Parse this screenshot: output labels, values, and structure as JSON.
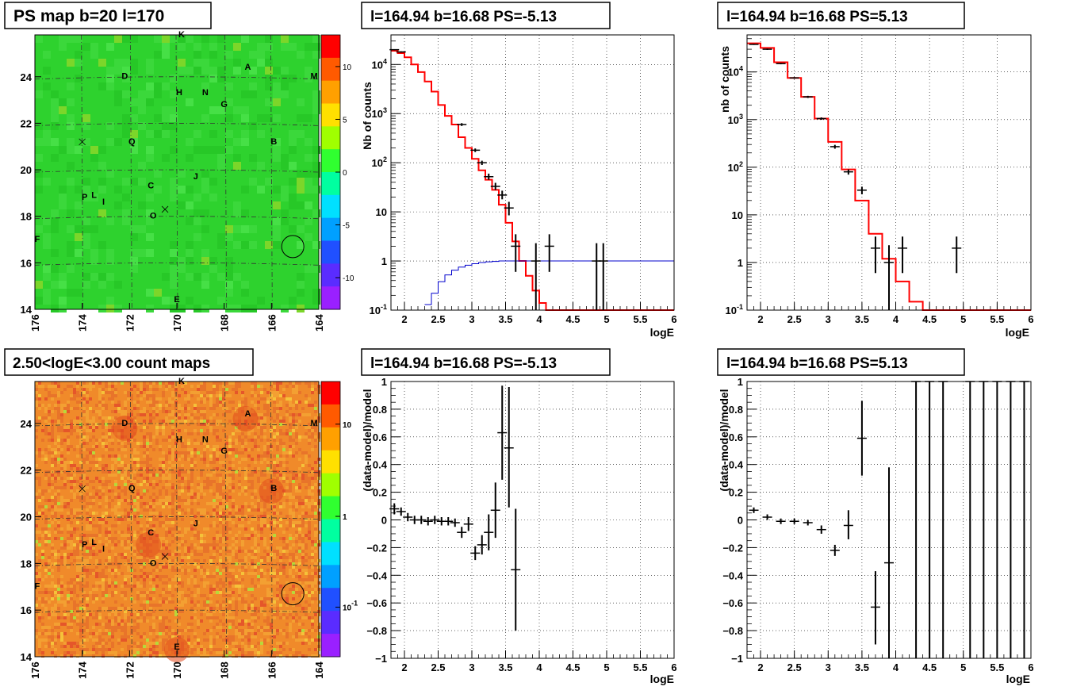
{
  "chart_data": [
    {
      "type": "heatmap",
      "title": "PS map b=20 l=170",
      "xlim": [
        176,
        164
      ],
      "ylim": [
        14,
        25.8
      ],
      "x_ticks": [
        "176",
        "174",
        "172",
        "170",
        "168",
        "166",
        "164"
      ],
      "y_ticks": [
        "14",
        "16",
        "18",
        "20",
        "22",
        "24"
      ],
      "colorbar": {
        "ticks": [
          "-10",
          "-5",
          "0",
          "5",
          "10"
        ],
        "range": [
          -13,
          13
        ]
      },
      "colors": {
        "background": "#2ed22e",
        "circle": "#000000"
      },
      "sources": [
        {
          "label": "K",
          "l": 169.8,
          "b": 25.7
        },
        {
          "label": "A",
          "l": 167.0,
          "b": 24.3
        },
        {
          "label": "M",
          "l": 164.2,
          "b": 23.9
        },
        {
          "label": "D",
          "l": 172.2,
          "b": 23.9
        },
        {
          "label": "H",
          "l": 169.9,
          "b": 23.2
        },
        {
          "label": "N",
          "l": 168.8,
          "b": 23.2
        },
        {
          "label": "G",
          "l": 168.0,
          "b": 22.7
        },
        {
          "label": "B",
          "l": 165.9,
          "b": 21.1
        },
        {
          "label": "Q",
          "l": 171.9,
          "b": 21.1
        },
        {
          "label": "J",
          "l": 169.2,
          "b": 19.6
        },
        {
          "label": "C",
          "l": 171.1,
          "b": 19.2
        },
        {
          "label": "P",
          "l": 173.9,
          "b": 18.7
        },
        {
          "label": "L",
          "l": 173.5,
          "b": 18.8
        },
        {
          "label": "I",
          "l": 173.1,
          "b": 18.5
        },
        {
          "label": "O",
          "l": 171.0,
          "b": 17.9
        },
        {
          "label": "F",
          "l": 175.9,
          "b": 16.9
        },
        {
          "label": "E",
          "l": 170.0,
          "b": 14.3
        }
      ],
      "crosses": [
        {
          "l": 174.0,
          "b": 21.2
        },
        {
          "l": 170.5,
          "b": 18.3
        }
      ],
      "circle": {
        "l": 165.1,
        "b": 16.7
      }
    },
    {
      "type": "line",
      "title": "l=164.94 b=16.68 PS=-5.13",
      "xlabel": "logE",
      "ylabel": "Nb of counts",
      "xlim": [
        1.8,
        6
      ],
      "ylim": [
        0.1,
        40000
      ],
      "yscale": "log",
      "x_ticks": [
        "2",
        "2.5",
        "3",
        "3.5",
        "4",
        "4.5",
        "5",
        "5.5",
        "6"
      ],
      "y_ticks": [
        {
          "label": "10",
          "sup": "-1"
        },
        {
          "label": "1",
          "sup": ""
        },
        {
          "label": "10",
          "sup": ""
        },
        {
          "label": "10",
          "sup": "2"
        },
        {
          "label": "10",
          "sup": "3"
        },
        {
          "label": "10",
          "sup": "4"
        }
      ],
      "grid": true,
      "series": [
        {
          "role": "model",
          "color": "#ff0000",
          "edges": [
            1.8,
            1.9,
            2.0,
            2.1,
            2.2,
            2.3,
            2.4,
            2.5,
            2.6,
            2.7,
            2.8,
            2.9,
            3.0,
            3.1,
            3.2,
            3.3,
            3.4,
            3.5,
            3.6,
            3.7,
            3.8,
            3.9,
            4.0,
            4.1,
            4.2,
            6.0
          ],
          "values": [
            19000,
            17000,
            14000,
            10000,
            7000,
            4500,
            2800,
            1500,
            900,
            600,
            330,
            200,
            120,
            70,
            45,
            28,
            14,
            6,
            2.5,
            1.0,
            0.5,
            0.25,
            0.14,
            0.1,
            0.1
          ]
        },
        {
          "role": "component",
          "color": "#0000cc",
          "edges": [
            2.3,
            2.4,
            2.5,
            2.6,
            2.7,
            2.8,
            2.9,
            3.0,
            3.1,
            3.2,
            3.3,
            3.4,
            3.5,
            6.0
          ],
          "values": [
            0.13,
            0.22,
            0.38,
            0.52,
            0.65,
            0.75,
            0.82,
            0.88,
            0.93,
            0.96,
            0.98,
            1.0,
            1.0
          ]
        },
        {
          "role": "data",
          "color": "#000000",
          "points": [
            {
              "x": 1.85,
              "y": 20000,
              "lo": 19500,
              "hi": 20500
            },
            {
              "x": 1.95,
              "y": 18000,
              "lo": 17500,
              "hi": 18500
            },
            {
              "x": 2.85,
              "y": 600,
              "lo": 560,
              "hi": 640
            },
            {
              "x": 3.05,
              "y": 180,
              "lo": 165,
              "hi": 195
            },
            {
              "x": 3.15,
              "y": 100,
              "lo": 90,
              "hi": 110
            },
            {
              "x": 3.25,
              "y": 52,
              "lo": 45,
              "hi": 60
            },
            {
              "x": 3.35,
              "y": 33,
              "lo": 28,
              "hi": 39
            },
            {
              "x": 3.45,
              "y": 22,
              "lo": 18,
              "hi": 27
            },
            {
              "x": 3.55,
              "y": 12,
              "lo": 8.5,
              "hi": 16
            },
            {
              "x": 3.65,
              "y": 2,
              "lo": 0.6,
              "hi": 3.5
            },
            {
              "x": 3.95,
              "y": 1,
              "lo": 0.1,
              "hi": 2.3
            },
            {
              "x": 4.15,
              "y": 2,
              "lo": 0.6,
              "hi": 3.5
            },
            {
              "x": 4.85,
              "y": 1,
              "lo": 0.1,
              "hi": 2.3
            },
            {
              "x": 4.95,
              "y": 1,
              "lo": 0.1,
              "hi": 2.3
            }
          ]
        }
      ]
    },
    {
      "type": "line",
      "title": "l=164.94 b=16.68 PS=5.13",
      "xlabel": "logE",
      "ylabel": "nb of counts",
      "xlim": [
        1.8,
        6
      ],
      "ylim": [
        0.1,
        60000
      ],
      "yscale": "log",
      "x_ticks": [
        "2",
        "2.5",
        "3",
        "3.5",
        "4",
        "4.5",
        "5",
        "5.5",
        "6"
      ],
      "y_ticks": [
        {
          "label": "10",
          "sup": "-1"
        },
        {
          "label": "1",
          "sup": ""
        },
        {
          "label": "10",
          "sup": ""
        },
        {
          "label": "10",
          "sup": "2"
        },
        {
          "label": "10",
          "sup": "3"
        },
        {
          "label": "10",
          "sup": "4"
        }
      ],
      "grid": true,
      "series": [
        {
          "role": "model",
          "color": "#ff0000",
          "edges": [
            1.8,
            2.0,
            2.2,
            2.4,
            2.6,
            2.8,
            3.0,
            3.2,
            3.4,
            3.6,
            3.8,
            4.0,
            4.2,
            4.4,
            4.6,
            6.0
          ],
          "values": [
            40000,
            32000,
            16000,
            7500,
            3000,
            1050,
            340,
            90,
            20,
            4,
            1.2,
            0.4,
            0.15,
            0.1,
            0.1
          ]
        },
        {
          "role": "data",
          "color": "#000000",
          "points": [
            {
              "x": 1.9,
              "y": 38000,
              "lo": 37000,
              "hi": 39000
            },
            {
              "x": 2.1,
              "y": 30000,
              "lo": 29000,
              "hi": 31000
            },
            {
              "x": 2.3,
              "y": 15000,
              "lo": 14500,
              "hi": 15500
            },
            {
              "x": 2.5,
              "y": 7500,
              "lo": 7200,
              "hi": 7800
            },
            {
              "x": 2.7,
              "y": 3000,
              "lo": 2850,
              "hi": 3150
            },
            {
              "x": 2.9,
              "y": 1050,
              "lo": 990,
              "hi": 1110
            },
            {
              "x": 3.1,
              "y": 270,
              "lo": 245,
              "hi": 295
            },
            {
              "x": 3.3,
              "y": 80,
              "lo": 70,
              "hi": 90
            },
            {
              "x": 3.5,
              "y": 33,
              "lo": 27,
              "hi": 39
            },
            {
              "x": 3.7,
              "y": 2,
              "lo": 0.6,
              "hi": 3.5
            },
            {
              "x": 3.9,
              "y": 1,
              "lo": 0.1,
              "hi": 2.3
            },
            {
              "x": 4.1,
              "y": 2,
              "lo": 0.6,
              "hi": 3.5
            },
            {
              "x": 4.9,
              "y": 2,
              "lo": 0.6,
              "hi": 3.5
            }
          ]
        }
      ]
    },
    {
      "type": "heatmap",
      "title": "2.50<logE<3.00 count maps",
      "xlim": [
        176,
        164
      ],
      "ylim": [
        14,
        25.8
      ],
      "x_ticks": [
        "176",
        "174",
        "172",
        "170",
        "168",
        "166",
        "164"
      ],
      "y_ticks": [
        "14",
        "16",
        "18",
        "20",
        "22",
        "24"
      ],
      "colorbar": {
        "ticks": [
          {
            "label": "10",
            "sup": "-1"
          },
          {
            "label": "1",
            "sup": ""
          },
          {
            "label": "10",
            "sup": ""
          }
        ],
        "scale": "log"
      },
      "colors": {
        "background": "#f08a2a",
        "hot": "#e24a1e",
        "circle": "#000000"
      },
      "hot_spots": [
        {
          "l": 171.2,
          "b": 18.8
        },
        {
          "l": 167.1,
          "b": 24.2
        },
        {
          "l": 172.2,
          "b": 23.8
        },
        {
          "l": 166.0,
          "b": 21.1
        },
        {
          "l": 170.0,
          "b": 14.3
        }
      ],
      "sources": [
        {
          "label": "K",
          "l": 169.8,
          "b": 25.7
        },
        {
          "label": "A",
          "l": 167.0,
          "b": 24.3
        },
        {
          "label": "M",
          "l": 164.2,
          "b": 23.9
        },
        {
          "label": "D",
          "l": 172.2,
          "b": 23.9
        },
        {
          "label": "H",
          "l": 169.9,
          "b": 23.2
        },
        {
          "label": "N",
          "l": 168.8,
          "b": 23.2
        },
        {
          "label": "G",
          "l": 168.0,
          "b": 22.7
        },
        {
          "label": "B",
          "l": 165.9,
          "b": 21.1
        },
        {
          "label": "Q",
          "l": 171.9,
          "b": 21.1
        },
        {
          "label": "J",
          "l": 169.2,
          "b": 19.6
        },
        {
          "label": "C",
          "l": 171.1,
          "b": 19.2
        },
        {
          "label": "P",
          "l": 173.9,
          "b": 18.7
        },
        {
          "label": "L",
          "l": 173.5,
          "b": 18.8
        },
        {
          "label": "I",
          "l": 173.1,
          "b": 18.5
        },
        {
          "label": "O",
          "l": 171.0,
          "b": 17.9
        },
        {
          "label": "F",
          "l": 175.9,
          "b": 16.9
        },
        {
          "label": "E",
          "l": 170.0,
          "b": 14.3
        }
      ],
      "crosses": [
        {
          "l": 174.0,
          "b": 21.2
        },
        {
          "l": 170.5,
          "b": 18.3
        }
      ],
      "circle": {
        "l": 165.1,
        "b": 16.7
      }
    },
    {
      "type": "scatter",
      "title": "l=164.94 b=16.68 PS=-5.13",
      "xlabel": "logE",
      "ylabel": "(data-model)/model",
      "xlim": [
        1.8,
        6
      ],
      "ylim": [
        -1,
        1
      ],
      "x_ticks": [
        "2",
        "2.5",
        "3",
        "3.5",
        "4",
        "4.5",
        "5",
        "5.5",
        "6"
      ],
      "y_ticks": [
        "−1",
        "−0.8",
        "−0.6",
        "−0.4",
        "−0.2",
        "0",
        "0.2",
        "0.4",
        "0.6",
        "0.8",
        "1"
      ],
      "grid": true,
      "series": [
        {
          "role": "data",
          "color": "#000000",
          "points": [
            {
              "x": 1.85,
              "y": 0.08,
              "lo": 0.04,
              "hi": 0.12
            },
            {
              "x": 1.95,
              "y": 0.06,
              "lo": 0.03,
              "hi": 0.09
            },
            {
              "x": 2.05,
              "y": 0.02,
              "lo": -0.01,
              "hi": 0.05
            },
            {
              "x": 2.15,
              "y": 0.0,
              "lo": -0.03,
              "hi": 0.03
            },
            {
              "x": 2.25,
              "y": 0.0,
              "lo": -0.03,
              "hi": 0.03
            },
            {
              "x": 2.35,
              "y": -0.01,
              "lo": -0.04,
              "hi": 0.02
            },
            {
              "x": 2.45,
              "y": 0.0,
              "lo": -0.03,
              "hi": 0.03
            },
            {
              "x": 2.55,
              "y": -0.01,
              "lo": -0.04,
              "hi": 0.02
            },
            {
              "x": 2.65,
              "y": -0.01,
              "lo": -0.04,
              "hi": 0.02
            },
            {
              "x": 2.75,
              "y": -0.02,
              "lo": -0.05,
              "hi": 0.01
            },
            {
              "x": 2.85,
              "y": -0.09,
              "lo": -0.13,
              "hi": -0.05
            },
            {
              "x": 2.95,
              "y": -0.03,
              "lo": -0.08,
              "hi": 0.02
            },
            {
              "x": 3.05,
              "y": -0.24,
              "lo": -0.29,
              "hi": -0.19
            },
            {
              "x": 3.15,
              "y": -0.18,
              "lo": -0.25,
              "hi": -0.11
            },
            {
              "x": 3.25,
              "y": -0.09,
              "lo": -0.22,
              "hi": 0.04
            },
            {
              "x": 3.35,
              "y": 0.07,
              "lo": -0.13,
              "hi": 0.27
            },
            {
              "x": 3.45,
              "y": 0.63,
              "lo": 0.29,
              "hi": 0.97
            },
            {
              "x": 3.55,
              "y": 0.52,
              "lo": 0.09,
              "hi": 0.96
            },
            {
              "x": 3.65,
              "y": -0.36,
              "lo": -0.8,
              "hi": 0.08
            }
          ]
        }
      ]
    },
    {
      "type": "scatter",
      "title": "l=164.94 b=16.68 PS=5.13",
      "xlabel": "logE",
      "ylabel": "(data-model)/model",
      "xlim": [
        1.8,
        6
      ],
      "ylim": [
        -1,
        1
      ],
      "x_ticks": [
        "2",
        "2.5",
        "3",
        "3.5",
        "4",
        "4.5",
        "5",
        "5.5",
        "6"
      ],
      "y_ticks": [
        "−1",
        "−0.8",
        "−0.6",
        "−0.4",
        "−0.2",
        "0",
        "0.2",
        "0.4",
        "0.6",
        "0.8",
        "1"
      ],
      "grid": true,
      "series": [
        {
          "role": "data",
          "color": "#000000",
          "points": [
            {
              "x": 1.9,
              "y": 0.07,
              "lo": 0.05,
              "hi": 0.09
            },
            {
              "x": 2.1,
              "y": 0.02,
              "lo": 0.0,
              "hi": 0.04
            },
            {
              "x": 2.3,
              "y": -0.01,
              "lo": -0.03,
              "hi": 0.01
            },
            {
              "x": 2.5,
              "y": -0.01,
              "lo": -0.03,
              "hi": 0.01
            },
            {
              "x": 2.7,
              "y": -0.02,
              "lo": -0.04,
              "hi": 0.0
            },
            {
              "x": 2.9,
              "y": -0.07,
              "lo": -0.1,
              "hi": -0.04
            },
            {
              "x": 3.1,
              "y": -0.22,
              "lo": -0.26,
              "hi": -0.18
            },
            {
              "x": 3.3,
              "y": -0.04,
              "lo": -0.14,
              "hi": 0.07
            },
            {
              "x": 3.5,
              "y": 0.59,
              "lo": 0.32,
              "hi": 0.86
            },
            {
              "x": 3.7,
              "y": -0.63,
              "lo": -0.9,
              "hi": -0.37
            },
            {
              "x": 3.9,
              "y": -0.31,
              "lo": -1.0,
              "hi": 0.38
            },
            {
              "x": 4.3,
              "y": 1,
              "lo": -1,
              "hi": 1
            },
            {
              "x": 4.5,
              "y": 1,
              "lo": -1,
              "hi": 1
            },
            {
              "x": 4.7,
              "y": 1,
              "lo": -1,
              "hi": 1
            },
            {
              "x": 5.1,
              "y": 1,
              "lo": -1,
              "hi": 1
            },
            {
              "x": 5.3,
              "y": 1,
              "lo": -1,
              "hi": 1
            },
            {
              "x": 5.5,
              "y": 1,
              "lo": -1,
              "hi": 1
            },
            {
              "x": 5.7,
              "y": 1,
              "lo": -1,
              "hi": 1
            },
            {
              "x": 5.9,
              "y": 1,
              "lo": -1,
              "hi": 1
            }
          ]
        }
      ]
    }
  ]
}
